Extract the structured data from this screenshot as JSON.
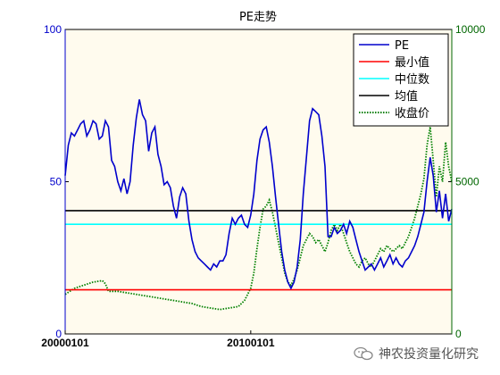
{
  "chart_data": {
    "type": "line",
    "title": "PE走势",
    "x_tick_labels": [
      "20000101",
      "20100101"
    ],
    "y_left": {
      "ylim": [
        0,
        100
      ],
      "ticks": [
        0,
        50,
        100
      ]
    },
    "y_right": {
      "ylim": [
        0,
        10000
      ],
      "ticks": [
        0,
        5000,
        10000
      ]
    },
    "legend_position": "top-right",
    "background": "#fffbee",
    "series": [
      {
        "name": "PE",
        "axis": "left",
        "color": "#0000cc",
        "style": "solid",
        "points": [
          [
            0,
            52
          ],
          [
            1,
            62
          ],
          [
            2,
            66
          ],
          [
            3,
            65
          ],
          [
            4,
            67
          ],
          [
            5,
            69
          ],
          [
            6,
            70
          ],
          [
            7,
            65
          ],
          [
            8,
            67
          ],
          [
            9,
            70
          ],
          [
            10,
            69
          ],
          [
            11,
            64
          ],
          [
            12,
            65
          ],
          [
            13,
            70
          ],
          [
            14,
            68
          ],
          [
            15,
            57
          ],
          [
            16,
            55
          ],
          [
            17,
            50
          ],
          [
            18,
            47
          ],
          [
            19,
            51
          ],
          [
            20,
            46
          ],
          [
            21,
            50
          ],
          [
            22,
            62
          ],
          [
            23,
            71
          ],
          [
            24,
            77
          ],
          [
            25,
            72
          ],
          [
            26,
            70
          ],
          [
            27,
            60
          ],
          [
            28,
            66
          ],
          [
            29,
            68
          ],
          [
            30,
            59
          ],
          [
            31,
            55
          ],
          [
            32,
            49
          ],
          [
            33,
            50
          ],
          [
            34,
            48
          ],
          [
            35,
            42
          ],
          [
            36,
            38
          ],
          [
            37,
            45
          ],
          [
            38,
            48
          ],
          [
            39,
            46
          ],
          [
            40,
            37
          ],
          [
            41,
            31
          ],
          [
            42,
            27
          ],
          [
            43,
            25
          ],
          [
            44,
            24
          ],
          [
            45,
            23
          ],
          [
            46,
            22
          ],
          [
            47,
            21
          ],
          [
            48,
            23
          ],
          [
            49,
            22
          ],
          [
            50,
            24
          ],
          [
            51,
            24
          ],
          [
            52,
            26
          ],
          [
            53,
            33
          ],
          [
            54,
            38
          ],
          [
            55,
            36
          ],
          [
            56,
            38
          ],
          [
            57,
            39
          ],
          [
            58,
            36
          ],
          [
            59,
            35
          ],
          [
            60,
            39
          ],
          [
            61,
            46
          ],
          [
            62,
            57
          ],
          [
            63,
            64
          ],
          [
            64,
            67
          ],
          [
            65,
            68
          ],
          [
            66,
            63
          ],
          [
            67,
            55
          ],
          [
            68,
            45
          ],
          [
            69,
            36
          ],
          [
            70,
            27
          ],
          [
            71,
            21
          ],
          [
            72,
            17
          ],
          [
            73,
            15
          ],
          [
            74,
            17
          ],
          [
            75,
            22
          ],
          [
            76,
            31
          ],
          [
            77,
            46
          ],
          [
            78,
            58
          ],
          [
            79,
            70
          ],
          [
            80,
            74
          ],
          [
            81,
            73
          ],
          [
            82,
            72
          ],
          [
            83,
            65
          ],
          [
            84,
            55
          ],
          [
            85,
            32
          ],
          [
            86,
            32
          ],
          [
            87,
            35
          ],
          [
            88,
            33
          ],
          [
            89,
            34
          ],
          [
            90,
            36
          ],
          [
            91,
            33
          ],
          [
            92,
            37
          ],
          [
            93,
            35
          ],
          [
            94,
            31
          ],
          [
            95,
            27
          ],
          [
            96,
            24
          ],
          [
            97,
            21
          ],
          [
            98,
            22
          ],
          [
            99,
            23
          ],
          [
            100,
            21
          ],
          [
            101,
            23
          ],
          [
            102,
            25
          ],
          [
            103,
            22
          ],
          [
            104,
            24
          ],
          [
            105,
            26
          ],
          [
            106,
            23
          ],
          [
            107,
            25
          ],
          [
            108,
            23
          ],
          [
            109,
            22
          ],
          [
            110,
            24
          ],
          [
            111,
            25
          ],
          [
            112,
            27
          ],
          [
            113,
            29
          ],
          [
            114,
            32
          ],
          [
            115,
            36
          ],
          [
            116,
            40
          ],
          [
            117,
            50
          ],
          [
            118,
            58
          ],
          [
            119,
            52
          ],
          [
            120,
            40
          ],
          [
            121,
            47
          ],
          [
            122,
            38
          ],
          [
            123,
            46
          ],
          [
            124,
            37
          ],
          [
            125,
            41
          ]
        ]
      },
      {
        "name": "最小值",
        "axis": "left",
        "color": "#ff0000",
        "style": "solid",
        "points": [
          [
            0,
            14.5
          ],
          [
            125,
            14.5
          ]
        ]
      },
      {
        "name": "中位数",
        "axis": "left",
        "color": "#00ffff",
        "style": "solid",
        "points": [
          [
            0,
            36
          ],
          [
            125,
            36
          ]
        ]
      },
      {
        "name": "均值",
        "axis": "left",
        "color": "#000000",
        "style": "solid",
        "points": [
          [
            0,
            40.5
          ],
          [
            125,
            40.5
          ]
        ]
      },
      {
        "name": "收盘价",
        "axis": "right",
        "color": "#008000",
        "style": "dotted",
        "points": [
          [
            0,
            1300
          ],
          [
            3,
            1500
          ],
          [
            6,
            1600
          ],
          [
            9,
            1700
          ],
          [
            12,
            1750
          ],
          [
            13,
            1650
          ],
          [
            14,
            1400
          ],
          [
            17,
            1400
          ],
          [
            20,
            1350
          ],
          [
            23,
            1300
          ],
          [
            26,
            1250
          ],
          [
            29,
            1200
          ],
          [
            32,
            1150
          ],
          [
            35,
            1100
          ],
          [
            38,
            1050
          ],
          [
            41,
            1000
          ],
          [
            44,
            900
          ],
          [
            47,
            850
          ],
          [
            50,
            800
          ],
          [
            53,
            850
          ],
          [
            56,
            900
          ],
          [
            58,
            1100
          ],
          [
            60,
            1500
          ],
          [
            61,
            2000
          ],
          [
            62,
            2800
          ],
          [
            63,
            3500
          ],
          [
            64,
            4100
          ],
          [
            65,
            4200
          ],
          [
            66,
            4400
          ],
          [
            67,
            4000
          ],
          [
            68,
            3500
          ],
          [
            69,
            3000
          ],
          [
            70,
            2500
          ],
          [
            71,
            2000
          ],
          [
            72,
            1700
          ],
          [
            73,
            1600
          ],
          [
            74,
            1800
          ],
          [
            75,
            2100
          ],
          [
            76,
            2500
          ],
          [
            77,
            2900
          ],
          [
            78,
            3100
          ],
          [
            79,
            3300
          ],
          [
            80,
            3200
          ],
          [
            81,
            3000
          ],
          [
            82,
            3100
          ],
          [
            83,
            2900
          ],
          [
            84,
            2700
          ],
          [
            85,
            3000
          ],
          [
            86,
            3400
          ],
          [
            87,
            3600
          ],
          [
            88,
            3400
          ],
          [
            89,
            3600
          ],
          [
            90,
            3300
          ],
          [
            91,
            3000
          ],
          [
            92,
            2700
          ],
          [
            93,
            2500
          ],
          [
            94,
            2300
          ],
          [
            95,
            2200
          ],
          [
            96,
            2400
          ],
          [
            97,
            2500
          ],
          [
            98,
            2300
          ],
          [
            99,
            2200
          ],
          [
            100,
            2400
          ],
          [
            101,
            2600
          ],
          [
            102,
            2800
          ],
          [
            103,
            2700
          ],
          [
            104,
            2900
          ],
          [
            105,
            2800
          ],
          [
            106,
            2700
          ],
          [
            107,
            2800
          ],
          [
            108,
            2900
          ],
          [
            109,
            2800
          ],
          [
            110,
            3000
          ],
          [
            111,
            3200
          ],
          [
            112,
            3500
          ],
          [
            113,
            3800
          ],
          [
            114,
            4200
          ],
          [
            115,
            4600
          ],
          [
            116,
            5100
          ],
          [
            117,
            6200
          ],
          [
            118,
            6800
          ],
          [
            119,
            5700
          ],
          [
            120,
            4500
          ],
          [
            121,
            5500
          ],
          [
            122,
            5000
          ],
          [
            123,
            6300
          ],
          [
            124,
            5500
          ],
          [
            125,
            5000
          ]
        ]
      }
    ]
  },
  "watermark": {
    "text": "神农投资量化研究",
    "icon": "wechat-icon"
  }
}
